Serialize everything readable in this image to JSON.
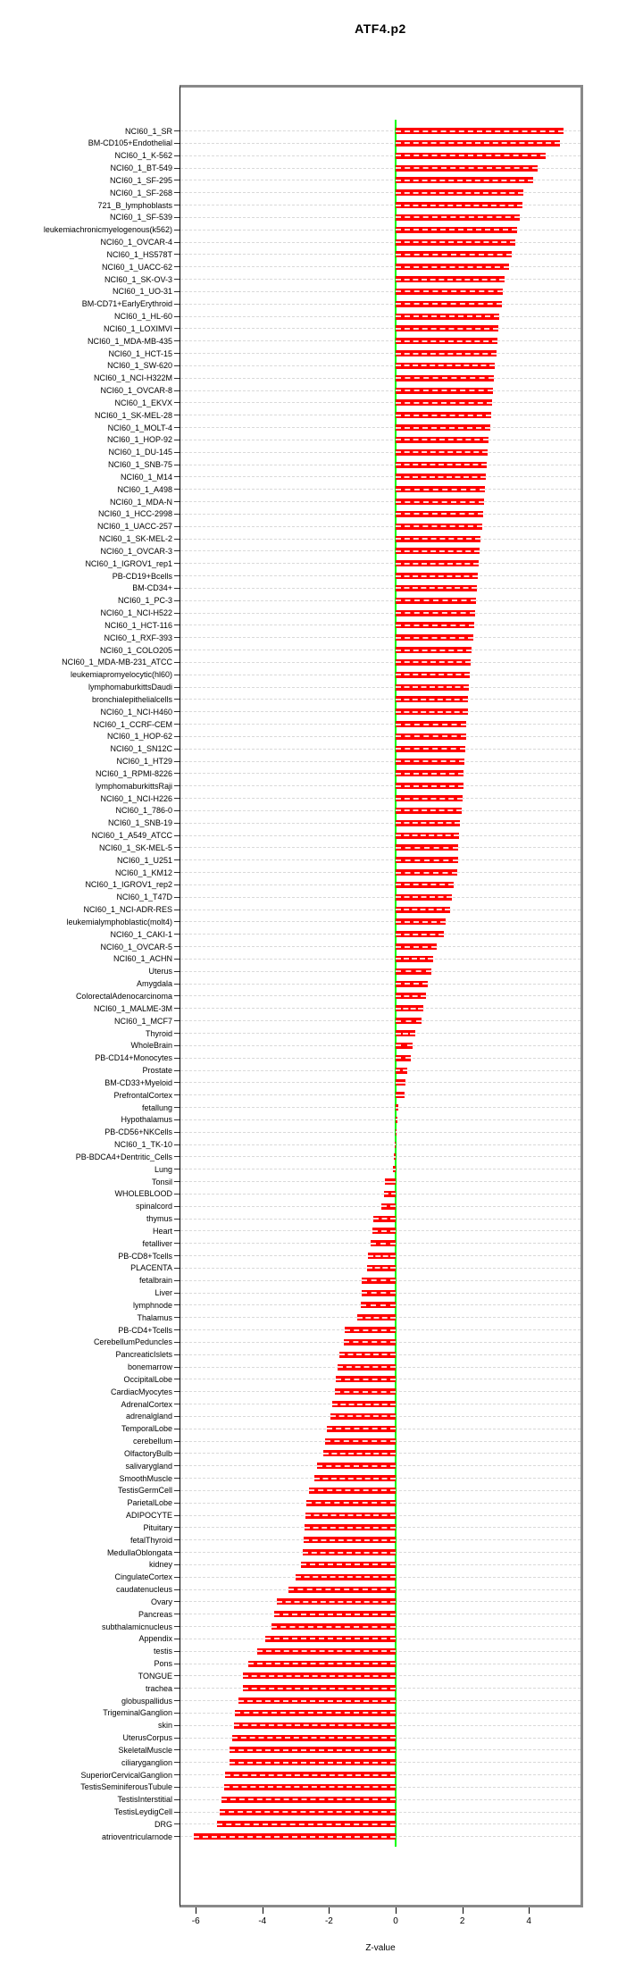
{
  "title": "ATF4.p2",
  "chart_data": {
    "type": "bar",
    "orientation": "horizontal",
    "title": "ATF4.p2",
    "xlabel": "Z-value",
    "ylabel": "",
    "xlim": [
      -6.45,
      5.55
    ],
    "x_ticks": [
      -6,
      -4,
      -2,
      0,
      2,
      4
    ],
    "grid": true,
    "bar_color": "#ff0000",
    "zero_line_color": "#00ff00",
    "categories": [
      "NCI60_1_SR",
      "BM-CD105+Endothelial",
      "NCI60_1_K-562",
      "NCI60_1_BT-549",
      "NCI60_1_SF-295",
      "NCI60_1_SF-268",
      "721_B_lymphoblasts",
      "NCI60_1_SF-539",
      "leukemiachronicmyelogenous(k562)",
      "NCI60_1_OVCAR-4",
      "NCI60_1_HS578T",
      "NCI60_1_UACC-62",
      "NCI60_1_SK-OV-3",
      "NCI60_1_UO-31",
      "BM-CD71+EarlyErythroid",
      "NCI60_1_HL-60",
      "NCI60_1_LOXIMVI",
      "NCI60_1_MDA-MB-435",
      "NCI60_1_HCT-15",
      "NCI60_1_SW-620",
      "NCI60_1_NCI-H322M",
      "NCI60_1_OVCAR-8",
      "NCI60_1_EKVX",
      "NCI60_1_SK-MEL-28",
      "NCI60_1_MOLT-4",
      "NCI60_1_HOP-92",
      "NCI60_1_DU-145",
      "NCI60_1_SNB-75",
      "NCI60_1_M14",
      "NCI60_1_A498",
      "NCI60_1_MDA-N",
      "NCI60_1_HCC-2998",
      "NCI60_1_UACC-257",
      "NCI60_1_SK-MEL-2",
      "NCI60_1_OVCAR-3",
      "NCI60_1_IGROV1_rep1",
      "PB-CD19+Bcells",
      "BM-CD34+",
      "NCI60_1_PC-3",
      "NCI60_1_NCI-H522",
      "NCI60_1_HCT-116",
      "NCI60_1_RXF-393",
      "NCI60_1_COLO205",
      "NCI60_1_MDA-MB-231_ATCC",
      "leukemiapromyelocytic(hl60)",
      "lymphomaburkittsDaudi",
      "bronchialepithelialcells",
      "NCI60_1_NCI-H460",
      "NCI60_1_CCRF-CEM",
      "NCI60_1_HOP-62",
      "NCI60_1_SN12C",
      "NCI60_1_HT29",
      "NCI60_1_RPMI-8226",
      "lymphomaburkittsRaji",
      "NCI60_1_NCI-H226",
      "NCI60_1_786-0",
      "NCI60_1_SNB-19",
      "NCI60_1_A549_ATCC",
      "NCI60_1_SK-MEL-5",
      "NCI60_1_U251",
      "NCI60_1_KM12",
      "NCI60_1_IGROV1_rep2",
      "NCI60_1_T47D",
      "NCI60_1_NCI-ADR-RES",
      "leukemialymphoblastic(molt4)",
      "NCI60_1_CAKI-1",
      "NCI60_1_OVCAR-5",
      "NCI60_1_ACHN",
      "Uterus",
      "Amygdala",
      "ColorectalAdenocarcinoma",
      "NCI60_1_MALME-3M",
      "NCI60_1_MCF7",
      "Thyroid",
      "WholeBrain",
      "PB-CD14+Monocytes",
      "Prostate",
      "BM-CD33+Myeloid",
      "PrefrontalCortex",
      "fetallung",
      "Hypothalamus",
      "PB-CD56+NKCells",
      "NCI60_1_TK-10",
      "PB-BDCA4+Dentritic_Cells",
      "Lung",
      "Tonsil",
      "WHOLEBLOOD",
      "spinalcord",
      "thymus",
      "Heart",
      "fetalliver",
      "PB-CD8+Tcells",
      "PLACENTA",
      "fetalbrain",
      "Liver",
      "lymphnode",
      "Thalamus",
      "PB-CD4+Tcells",
      "CerebellumPeduncles",
      "PancreaticIslets",
      "bonemarrow",
      "OccipitalLobe",
      "CardiacMyocytes",
      "AdrenalCortex",
      "adrenalgland",
      "TemporalLobe",
      "cerebellum",
      "OlfactoryBulb",
      "salivarygland",
      "SmoothMuscle",
      "TestisGermCell",
      "ParietalLobe",
      "ADIPOCYTE",
      "Pituitary",
      "fetalThyroid",
      "MedullaOblongata",
      "kidney",
      "CingulateCortex",
      "caudatenucleus",
      "Ovary",
      "Pancreas",
      "subthalamicnucleus",
      "Appendix",
      "testis",
      "Pons",
      "TONGUE",
      "trachea",
      "globuspallidus",
      "TrigeminalGanglion",
      "skin",
      "UterusCorpus",
      "SkeletalMuscle",
      "ciliaryganglion",
      "SuperiorCervicalGanglion",
      "TestisSeminiferousTubule",
      "TestisInterstitial",
      "TestisLeydigCell",
      "DRG",
      "atrioventricularnode"
    ],
    "values": [
      5.05,
      4.94,
      4.51,
      4.27,
      4.12,
      3.84,
      3.8,
      3.72,
      3.65,
      3.6,
      3.48,
      3.4,
      3.26,
      3.22,
      3.18,
      3.12,
      3.08,
      3.05,
      3.02,
      2.98,
      2.95,
      2.92,
      2.89,
      2.86,
      2.83,
      2.8,
      2.77,
      2.74,
      2.71,
      2.68,
      2.65,
      2.62,
      2.59,
      2.56,
      2.53,
      2.5,
      2.47,
      2.44,
      2.41,
      2.38,
      2.35,
      2.32,
      2.29,
      2.26,
      2.23,
      2.21,
      2.18,
      2.16,
      2.13,
      2.11,
      2.08,
      2.06,
      2.04,
      2.03,
      2.01,
      1.99,
      1.92,
      1.9,
      1.89,
      1.87,
      1.84,
      1.73,
      1.7,
      1.64,
      1.5,
      1.45,
      1.23,
      1.13,
      1.06,
      0.96,
      0.92,
      0.82,
      0.78,
      0.58,
      0.52,
      0.45,
      0.36,
      0.29,
      0.27,
      0.07,
      0.05,
      0.02,
      -0.04,
      -0.05,
      -0.09,
      -0.32,
      -0.36,
      -0.44,
      -0.66,
      -0.71,
      -0.74,
      -0.84,
      -0.87,
      -1.01,
      -1.02,
      -1.05,
      -1.16,
      -1.54,
      -1.56,
      -1.69,
      -1.73,
      -1.8,
      -1.83,
      -1.9,
      -1.96,
      -2.06,
      -2.13,
      -2.17,
      -2.36,
      -2.43,
      -2.59,
      -2.68,
      -2.72,
      -2.74,
      -2.77,
      -2.8,
      -2.84,
      -3.01,
      -3.22,
      -3.57,
      -3.65,
      -3.73,
      -3.91,
      -4.15,
      -4.42,
      -4.58,
      -4.58,
      -4.72,
      -4.82,
      -4.85,
      -4.91,
      -4.99,
      -5.0,
      -5.13,
      -5.15,
      -5.23,
      -5.27,
      -5.37,
      -6.05
    ]
  }
}
